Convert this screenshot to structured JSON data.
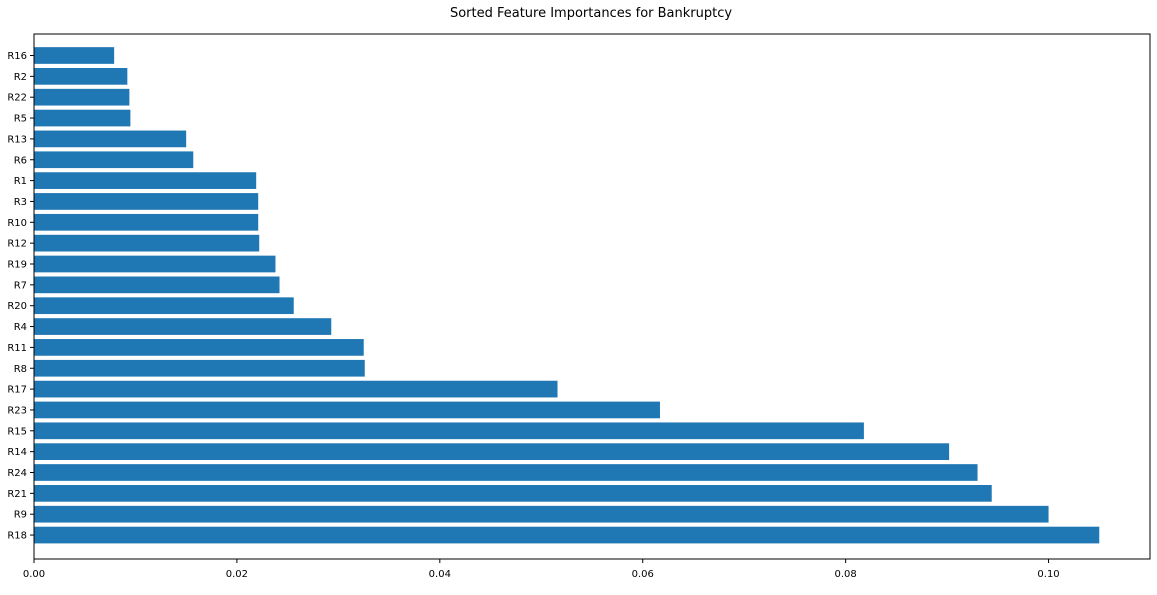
{
  "chart_data": {
    "type": "bar",
    "orientation": "horizontal",
    "title": "Sorted Feature Importances for Bankruptcy",
    "xlabel": "",
    "ylabel": "",
    "xlim": [
      0,
      0.11
    ],
    "x_ticks": [
      "0.00",
      "0.02",
      "0.04",
      "0.06",
      "0.08",
      "0.10"
    ],
    "categories": [
      "R16",
      "R2",
      "R22",
      "R5",
      "R13",
      "R6",
      "R1",
      "R3",
      "R10",
      "R12",
      "R19",
      "R7",
      "R20",
      "R4",
      "R11",
      "R8",
      "R17",
      "R23",
      "R15",
      "R14",
      "R24",
      "R21",
      "R9",
      "R18"
    ],
    "values": [
      0.0079,
      0.0092,
      0.0094,
      0.0095,
      0.015,
      0.0157,
      0.0219,
      0.0221,
      0.0221,
      0.0222,
      0.0238,
      0.0242,
      0.0256,
      0.0293,
      0.0325,
      0.0326,
      0.0516,
      0.0617,
      0.0818,
      0.0902,
      0.093,
      0.0944,
      0.1,
      0.105
    ],
    "bar_color": "#1f77b4",
    "grid": false,
    "legend": "none"
  }
}
